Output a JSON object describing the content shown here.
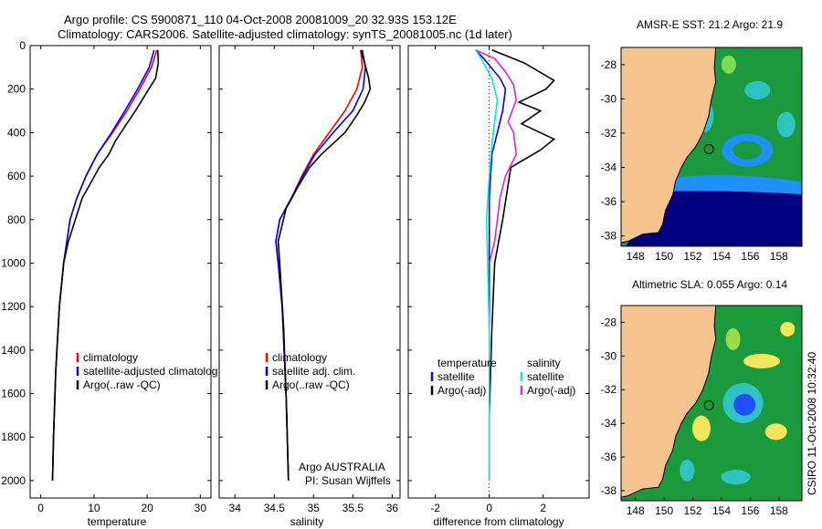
{
  "header": {
    "line1": "Argo profile: CS 5900871_110 04-Oct-2008 20081009_20 32.93S 153.12E",
    "line2": "Climatology: CARS2006. Satellite-adjusted climatology: synTS_20081005.nc (1d later)"
  },
  "side_label": "CSIRO 11-Oct-2008 10:32:40",
  "colors": {
    "climatology": "#ff0000",
    "satellite": "#0000ff",
    "argo": "#000000",
    "salinity_satellite": "#00e5e5",
    "salinity_argo": "#e020e0",
    "land": "#f7c48f",
    "map_ocean": "#1a9a3a",
    "map_deep": "#000080"
  },
  "chart_data": [
    {
      "type": "line",
      "id": "temperature",
      "xlabel": "temperature",
      "ylabel": "",
      "xlim": [
        -2,
        32
      ],
      "ylim": [
        2080,
        0
      ],
      "xticks": [
        0,
        10,
        20,
        30
      ],
      "yticks": [
        0,
        200,
        400,
        600,
        800,
        1000,
        1200,
        1400,
        1600,
        1800,
        2000
      ],
      "legend": {
        "position": "lower-right",
        "entries": [
          "climatology",
          "satellite-adjusted climatolog",
          "Argo(..raw -QC)"
        ]
      },
      "series": [
        {
          "name": "climatology",
          "color": "climatology",
          "x": [
            21.8,
            20.8,
            18.6,
            16.2,
            13.5,
            10.6,
            8.5,
            6.8,
            5.5,
            4.3,
            3.5,
            2.8,
            2.4,
            2.2
          ],
          "y": [
            20,
            100,
            200,
            300,
            400,
            500,
            600,
            700,
            800,
            1000,
            1200,
            1500,
            1800,
            2000
          ]
        },
        {
          "name": "satellite-adjusted climatolog",
          "color": "satellite",
          "x": [
            21.3,
            20.4,
            18.2,
            15.8,
            13.3,
            10.6,
            8.5,
            6.8,
            5.5,
            4.3,
            3.5,
            2.8,
            2.4,
            2.2
          ],
          "y": [
            20,
            100,
            200,
            300,
            400,
            500,
            600,
            700,
            800,
            1000,
            1200,
            1500,
            1800,
            2000
          ]
        },
        {
          "name": "Argo(..raw -QC)",
          "color": "argo",
          "x": [
            22.0,
            22.1,
            21.6,
            20.3,
            17.8,
            15.6,
            14.0,
            12.8,
            11.0,
            9.2,
            7.8,
            6.5,
            5.2,
            4.3,
            3.5,
            2.8,
            2.4,
            2.2
          ],
          "y": [
            20,
            80,
            150,
            200,
            300,
            380,
            440,
            500,
            560,
            640,
            700,
            800,
            900,
            1000,
            1200,
            1500,
            1800,
            2000
          ]
        }
      ]
    },
    {
      "type": "line",
      "id": "salinity",
      "xlabel": "salinity",
      "ylabel": "",
      "xlim": [
        33.8,
        36.1
      ],
      "ylim": [
        2080,
        0
      ],
      "xticks": [
        34,
        34.5,
        35,
        35.5,
        36
      ],
      "legend": {
        "position": "lower-right",
        "entries": [
          "climatology",
          "satellite adj. clim.",
          "Argo(..raw -QC)"
        ]
      },
      "annotation": [
        "Argo AUSTRALIA",
        "PI: Susan Wijffels"
      ],
      "series": [
        {
          "name": "climatology",
          "color": "climatology",
          "x": [
            35.6,
            35.62,
            35.55,
            35.4,
            35.2,
            35.0,
            34.85,
            34.72,
            34.57,
            34.52,
            34.55,
            34.6,
            34.65,
            34.68
          ],
          "y": [
            20,
            100,
            200,
            300,
            400,
            500,
            600,
            700,
            800,
            900,
            1000,
            1200,
            1600,
            2000
          ]
        },
        {
          "name": "satellite adj. clim.",
          "color": "satellite",
          "x": [
            35.62,
            35.66,
            35.63,
            35.5,
            35.25,
            35.02,
            34.86,
            34.72,
            34.57,
            34.52,
            34.55,
            34.6,
            34.65,
            34.68
          ],
          "y": [
            20,
            100,
            200,
            300,
            400,
            500,
            600,
            700,
            800,
            900,
            1000,
            1200,
            1600,
            2000
          ]
        },
        {
          "name": "Argo(..raw -QC)",
          "color": "argo",
          "x": [
            35.6,
            35.65,
            35.7,
            35.72,
            35.65,
            35.55,
            35.4,
            35.25,
            35.1,
            34.95,
            34.8,
            34.65,
            34.55,
            34.57,
            34.62,
            34.66,
            34.68
          ],
          "y": [
            20,
            80,
            150,
            200,
            260,
            320,
            400,
            450,
            500,
            560,
            650,
            750,
            900,
            1000,
            1300,
            1700,
            2000
          ]
        }
      ]
    },
    {
      "type": "line",
      "id": "difference",
      "xlabel": "difference from climatology",
      "ylabel": "",
      "xlim": [
        -3.0,
        3.7
      ],
      "ylim": [
        2080,
        0
      ],
      "xticks": [
        -2,
        0,
        2
      ],
      "legend": {
        "position": "lower-middle",
        "left_column": [
          "temperature",
          "satellite",
          "Argo(-adj)"
        ],
        "right_column": [
          "salinity",
          "satellite",
          "Argo(-adj)"
        ]
      },
      "series": [
        {
          "name": "temperature satellite",
          "color": "satellite",
          "x": [
            -0.5,
            -0.2,
            0.4,
            0.6,
            0.5,
            0.3,
            0.1,
            0.0,
            0.0,
            0.0
          ],
          "y": [
            20,
            60,
            150,
            200,
            300,
            400,
            500,
            700,
            1000,
            1300
          ]
        },
        {
          "name": "temperature Argo(-adj)",
          "color": "argo",
          "x": [
            0.1,
            1.3,
            2.4,
            2.1,
            1.1,
            1.9,
            1.2,
            2.4,
            1.9,
            0.8,
            0.5,
            0.2,
            0.1,
            0.0,
            0.0
          ],
          "y": [
            20,
            80,
            160,
            200,
            260,
            300,
            360,
            430,
            480,
            560,
            800,
            1000,
            1300,
            1700,
            2000
          ]
        },
        {
          "name": "salinity satellite",
          "color": "salinity_satellite",
          "x": [
            -0.5,
            -0.3,
            0.1,
            0.3,
            0.2,
            0.1,
            0.0,
            -0.1,
            0.0,
            0.0
          ],
          "y": [
            20,
            60,
            150,
            250,
            350,
            450,
            600,
            800,
            1300,
            2000
          ]
        },
        {
          "name": "salinity Argo(-adj)",
          "color": "salinity_argo",
          "x": [
            -0.5,
            0.2,
            0.6,
            0.9,
            1.0,
            0.7,
            0.9,
            1.0,
            0.6,
            0.4,
            0.2,
            0.0
          ],
          "y": [
            20,
            60,
            120,
            180,
            250,
            350,
            400,
            500,
            600,
            700,
            900,
            1000
          ]
        }
      ]
    }
  ],
  "maps": [
    {
      "id": "sst-map",
      "title": "AMSR-E SST: 21.2 Argo: 21.9",
      "xlim": [
        147,
        159.6
      ],
      "ylim": [
        -38.6,
        -27.0
      ],
      "xticks": [
        148,
        150,
        152,
        154,
        156,
        158
      ],
      "yticks": [
        -28,
        -30,
        -32,
        -34,
        -36,
        -38
      ],
      "profile_marker": {
        "lon": 153.12,
        "lat": -32.93
      }
    },
    {
      "id": "sla-map",
      "title": "Altimetric SLA: 0.055 Argo: 0.14",
      "xlim": [
        147,
        159.6
      ],
      "ylim": [
        -38.6,
        -27.0
      ],
      "xticks": [
        148,
        150,
        152,
        154,
        156,
        158
      ],
      "yticks": [
        -28,
        -30,
        -32,
        -34,
        -36,
        -38
      ],
      "profile_marker": {
        "lon": 153.12,
        "lat": -32.93
      }
    }
  ]
}
